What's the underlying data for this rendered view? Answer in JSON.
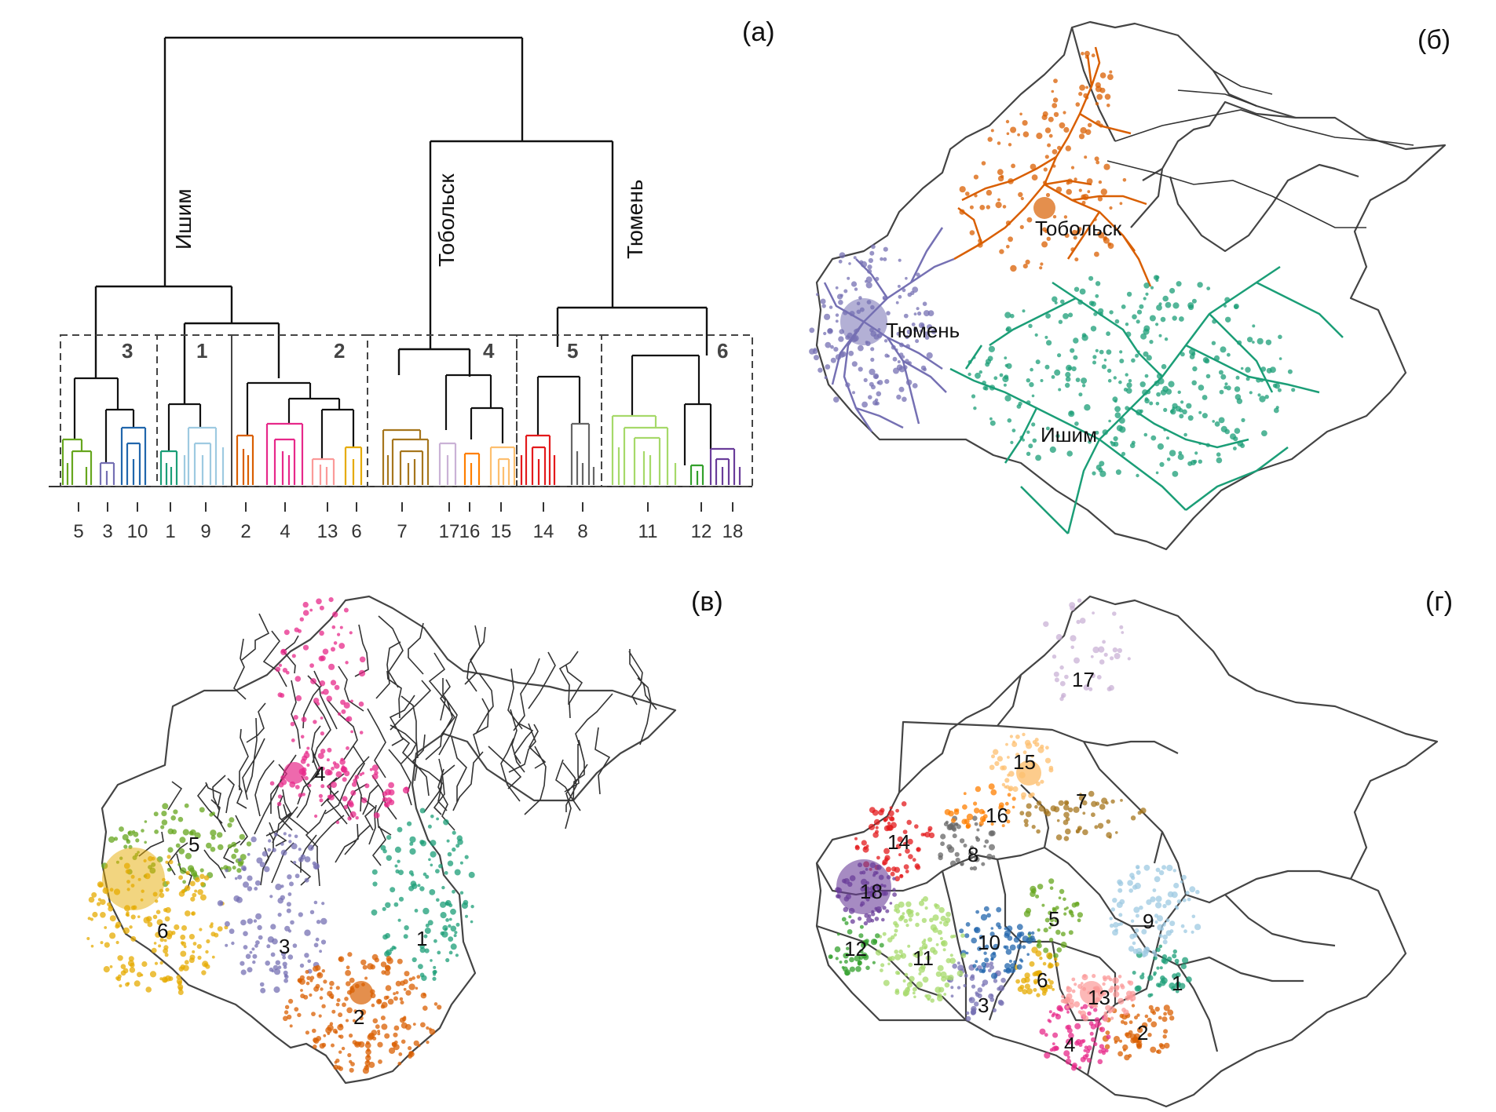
{
  "panels": {
    "a": {
      "label": "(а)"
    },
    "b": {
      "label": "(б)"
    },
    "v": {
      "label": "(в)"
    },
    "g": {
      "label": "(г)"
    }
  },
  "dendrogram": {
    "branch_labels": {
      "ishim": "Ишим",
      "tobolsk": "Тобольск",
      "tyumen": "Тюмень"
    },
    "groups": [
      "3",
      "1",
      "2",
      "4",
      "5",
      "6"
    ],
    "leaves": [
      "5",
      "3",
      "10",
      "1",
      "9",
      "2",
      "4",
      "13",
      "6",
      "7",
      "17",
      "16",
      "15",
      "14",
      "8",
      "11",
      "12",
      "18"
    ]
  },
  "map_b": {
    "cities": {
      "tobolsk": "Тобольск",
      "tyumen": "Тюмень",
      "ishim": "Ишим"
    }
  },
  "map_v": {
    "clusters": [
      "1",
      "2",
      "3",
      "4",
      "5",
      "6"
    ]
  },
  "map_g": {
    "clusters": [
      "1",
      "2",
      "3",
      "4",
      "5",
      "6",
      "7",
      "8",
      "9",
      "10",
      "11",
      "12",
      "13",
      "14",
      "15",
      "16",
      "17",
      "18"
    ]
  },
  "colors": {
    "c1": "#1b9e77",
    "c2": "#d95f02",
    "c3": "#7570b3",
    "c4": "#e7298a",
    "c5": "#66a61e",
    "c6": "#e6ab02",
    "c7": "#a6761d",
    "c8": "#666666",
    "c9": "#9ecae1",
    "c10": "#2166ac",
    "c11": "#a6d96a",
    "c12": "#33a02c",
    "c13": "#fb9a99",
    "c14": "#e31a1c",
    "c15": "#fdbf6f",
    "c16": "#ff7f00",
    "c17": "#cab2d6",
    "c18": "#6a3d9a"
  }
}
